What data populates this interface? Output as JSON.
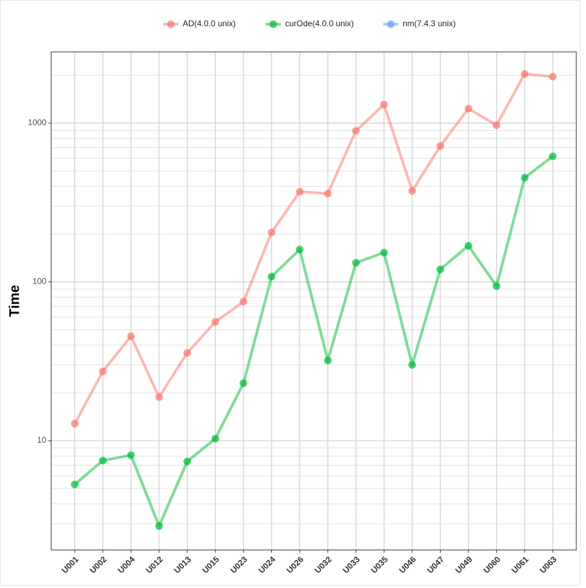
{
  "chart_data": {
    "type": "line",
    "y_label": "Time",
    "categories": [
      "U001",
      "U002",
      "U004",
      "U012",
      "U013",
      "U015",
      "U023",
      "U024",
      "U026",
      "U032",
      "U033",
      "U035",
      "U046",
      "U047",
      "U049",
      "U060",
      "U061",
      "U063"
    ],
    "series": [
      {
        "name": "AD(4.0.0 unix)",
        "color": "#f8766d",
        "values": [
          12.8,
          27.3,
          45.5,
          18.8,
          35.7,
          56,
          75,
          205,
          370,
          360,
          895,
          1310,
          374,
          718,
          1235,
          970,
          2040,
          1960
        ]
      },
      {
        "name": "curOde(4.0.0 unix)",
        "color": "#00ba38",
        "values": [
          5.3,
          7.5,
          8.1,
          2.9,
          7.4,
          10.3,
          23,
          108,
          160,
          32,
          132,
          153,
          30,
          120,
          169,
          94,
          453,
          618
        ]
      },
      {
        "name": "nm(7.4.3 unix)",
        "color": "#619cff",
        "values": [
          null,
          null,
          null,
          null,
          null,
          null,
          null,
          null,
          null,
          null,
          null,
          null,
          null,
          null,
          null,
          null,
          null,
          null
        ]
      }
    ],
    "log_y": true,
    "ylim": [
      2.05,
      2810
    ],
    "yticks": [
      10,
      100,
      1000
    ],
    "yminor_ticks": [
      3,
      4,
      5,
      6,
      7,
      8,
      9,
      20,
      30,
      40,
      50,
      60,
      70,
      80,
      90,
      200,
      300,
      400,
      500,
      600,
      700,
      800,
      900,
      2000
    ],
    "grid": true,
    "legend": "top"
  }
}
